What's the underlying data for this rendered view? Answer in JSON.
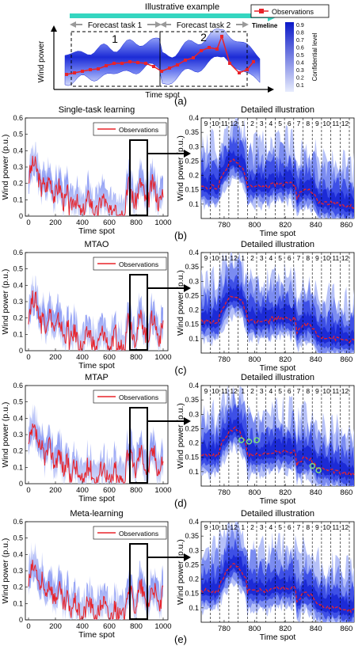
{
  "panel_a": {
    "title": "Illustrative example",
    "task1_label": "Forecast task 1",
    "task2_label": "Forecast task 2",
    "task1_number": "1",
    "task2_number": "2",
    "timeline_label": "Timeline",
    "xlabel": "Time spot",
    "ylabel": "Wind power",
    "legend_label": "Observations",
    "colorbar_label": "Confidential level",
    "colorbar_ticks": [
      "0.9",
      "0.8",
      "0.7",
      "0.6",
      "0.5",
      "0.4",
      "0.3",
      "0.2",
      "0.1"
    ],
    "tag": "(a)"
  },
  "colors": {
    "observation": "#e8232a",
    "band_dark": "#1c2bd6",
    "band_light": "#c9d2f8",
    "arrow_teal": "#35d6c0",
    "arrow_gray": "#9a9a9a",
    "marker_green": "#7fe07f"
  },
  "common": {
    "left_xlabel": "Time spot",
    "left_ylabel": "Wind power (p.u.)",
    "right_title": "Detailed illustration",
    "right_xlabel": "Time spot",
    "right_ylabel": "Wind power (p.u.)",
    "legend_label": "Observations",
    "hour_labels": [
      "9",
      "10",
      "11",
      "12",
      "1",
      "2",
      "3",
      "4",
      "5",
      "6",
      "7",
      "8",
      "9",
      "10",
      "11",
      "12"
    ]
  },
  "panels": [
    {
      "title": "Single-task learning",
      "tag": "(b)",
      "left_ylim": [
        0,
        0.6
      ],
      "left_yticks": [
        "0",
        "0.1",
        "0.2",
        "0.3",
        "0.4",
        "0.5",
        "0.6"
      ],
      "right_yticks": [
        "0.1",
        "0.15",
        "0.2",
        "0.25",
        "0.3",
        "0.35",
        "0.4"
      ]
    },
    {
      "title": "MTAO",
      "tag": "(c)",
      "left_ylim": [
        0,
        0.6
      ],
      "left_yticks": [
        "0",
        "0.1",
        "0.2",
        "0.3",
        "0.4",
        "0.5",
        "0.6"
      ],
      "right_yticks": [
        "0.1",
        "0.15",
        "0.2",
        "0.25",
        "0.3",
        "0.35",
        "0.4"
      ]
    },
    {
      "title": "MTAP",
      "tag": "(d)",
      "left_ylim": [
        0,
        0.6
      ],
      "left_yticks": [
        "0",
        "0.1",
        "0.2",
        "0.3",
        "0.4",
        "0.5",
        "0.6"
      ],
      "right_yticks": [
        "0.1",
        "0.15",
        "0.2",
        "0.25",
        "0.3",
        "0.35",
        "0.4"
      ]
    },
    {
      "title": "Meta-learning",
      "tag": "(e)",
      "left_ylim": [
        0,
        0.6
      ],
      "left_yticks": [
        "0",
        "0.1",
        "0.2",
        "0.3",
        "0.4",
        "0.5",
        "0.6"
      ],
      "right_yticks": [
        "0.1",
        "0.15",
        "0.2",
        "0.25",
        "0.3",
        "0.35",
        "0.4"
      ]
    }
  ],
  "chart_data": [
    {
      "type": "line",
      "title": "Illustrative example",
      "xlabel": "Time spot",
      "ylabel": "Wind power",
      "legend": [
        "Observations"
      ],
      "colorbar": {
        "label": "Confidential level",
        "ticks": [
          0.1,
          0.2,
          0.3,
          0.4,
          0.5,
          0.6,
          0.7,
          0.8,
          0.9
        ]
      }
    },
    {
      "type": "line",
      "title": "Single-task learning",
      "xlabel": "Time spot",
      "ylabel": "Wind power (p.u.)",
      "xlim": [
        0,
        1000
      ],
      "ylim": [
        0,
        0.6
      ],
      "xticks": [
        0,
        200,
        400,
        600,
        800,
        1000
      ],
      "yticks": [
        0,
        0.1,
        0.2,
        0.3,
        0.4,
        0.5,
        0.6
      ],
      "legend": [
        "Observations"
      ],
      "observations": [
        0.2,
        0.28,
        0.3,
        0.26,
        0.22,
        0.25,
        0.2,
        0.18,
        0.22,
        0.17,
        0.14,
        0.12,
        0.08,
        0.06,
        0.04,
        0.05,
        0.08,
        0.06,
        0.1,
        0.09,
        0.07,
        0.1,
        0.12,
        0.09,
        0.06,
        0.05,
        0.07,
        0.04,
        0.02,
        0.02,
        0.01,
        0.03,
        0.12,
        0.15,
        0.18,
        0.14,
        0.2,
        0.16,
        0.1,
        0.14,
        0.18
      ]
    },
    {
      "type": "line",
      "title": "Detailed illustration",
      "xlabel": "Time spot",
      "ylabel": "Wind power (p.u.)",
      "xlim": [
        765,
        865
      ],
      "ylim": [
        0.05,
        0.4
      ],
      "xticks": [
        780,
        800,
        820,
        840,
        860
      ],
      "yticks": [
        0.1,
        0.15,
        0.2,
        0.25,
        0.3,
        0.35,
        0.4
      ]
    },
    {
      "type": "line",
      "title": "MTAO",
      "xlabel": "Time spot",
      "ylabel": "Wind power (p.u.)",
      "xlim": [
        0,
        1000
      ],
      "ylim": [
        0,
        0.6
      ],
      "xticks": [
        0,
        200,
        400,
        600,
        800,
        1000
      ],
      "yticks": [
        0,
        0.1,
        0.2,
        0.3,
        0.4,
        0.5,
        0.6
      ],
      "legend": [
        "Observations"
      ]
    },
    {
      "type": "line",
      "title": "Detailed illustration",
      "xlabel": "Time spot",
      "ylabel": "Wind power (p.u.)",
      "xlim": [
        765,
        865
      ],
      "ylim": [
        0.05,
        0.4
      ],
      "xticks": [
        780,
        800,
        820,
        840,
        860
      ],
      "yticks": [
        0.1,
        0.15,
        0.2,
        0.25,
        0.3,
        0.35,
        0.4
      ]
    },
    {
      "type": "line",
      "title": "MTAP",
      "xlabel": "Time spot",
      "ylabel": "Wind power (p.u.)",
      "xlim": [
        0,
        1000
      ],
      "ylim": [
        0,
        0.6
      ],
      "xticks": [
        0,
        200,
        400,
        600,
        800,
        1000
      ],
      "yticks": [
        0,
        0.1,
        0.2,
        0.3,
        0.4,
        0.5,
        0.6
      ],
      "legend": [
        "Observations"
      ]
    },
    {
      "type": "line",
      "title": "Detailed illustration",
      "xlabel": "Time spot",
      "ylabel": "Wind power (p.u.)",
      "xlim": [
        765,
        865
      ],
      "ylim": [
        0.05,
        0.4
      ],
      "xticks": [
        780,
        800,
        820,
        840,
        860
      ],
      "yticks": [
        0.1,
        0.15,
        0.2,
        0.25,
        0.3,
        0.35,
        0.4
      ]
    },
    {
      "type": "line",
      "title": "Meta-learning",
      "xlabel": "Time spot",
      "ylabel": "Wind power (p.u.)",
      "xlim": [
        0,
        1000
      ],
      "ylim": [
        0,
        0.6
      ],
      "xticks": [
        0,
        200,
        400,
        600,
        800,
        1000
      ],
      "yticks": [
        0,
        0.1,
        0.2,
        0.3,
        0.4,
        0.5,
        0.6
      ],
      "legend": [
        "Observations"
      ]
    },
    {
      "type": "line",
      "title": "Detailed illustration",
      "xlabel": "Time spot",
      "ylabel": "Wind power (p.u.)",
      "xlim": [
        765,
        865
      ],
      "ylim": [
        0.05,
        0.4
      ],
      "xticks": [
        780,
        800,
        820,
        840,
        860
      ],
      "yticks": [
        0.1,
        0.15,
        0.2,
        0.25,
        0.3,
        0.35,
        0.4
      ]
    }
  ]
}
